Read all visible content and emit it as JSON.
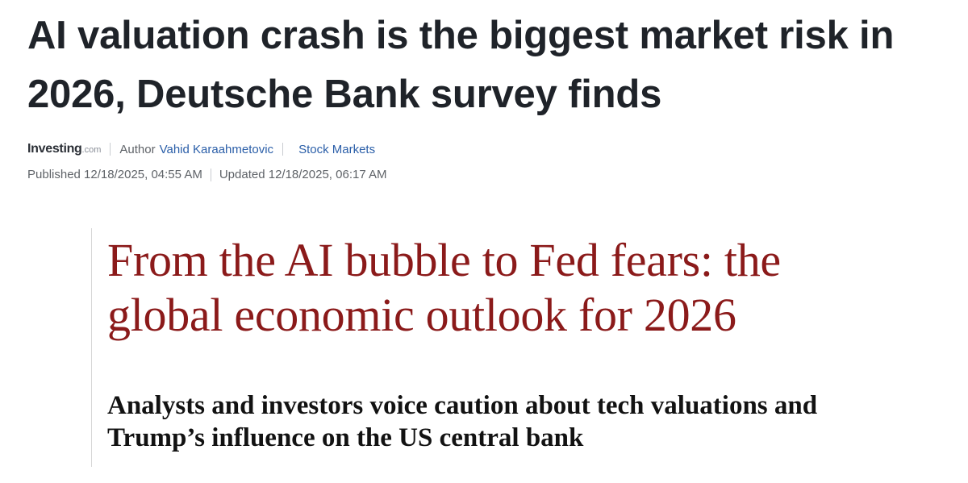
{
  "article": {
    "headline": "AI valuation crash is the biggest market risk in 2026, Deutsche Bank survey finds",
    "source": {
      "logo_text": "Investing",
      "logo_suffix": ".com"
    },
    "author_label": "Author",
    "author_name": "Vahid Karaahmetovic",
    "category": "Stock Markets",
    "published": "Published 12/18/2025, 04:55 AM",
    "updated": "Updated 12/18/2025, 06:17 AM"
  },
  "quote": {
    "headline": "From the AI bubble to Fed fears: the global economic outlook for 2026",
    "standfirst": "Analysts and investors voice caution about tech valuations and Trump’s influence on the US central bank"
  },
  "colors": {
    "headline": "#1f2329",
    "link": "#2a5ea8",
    "muted": "#5f6368",
    "guardian_red": "#8b1a1a",
    "standfirst": "#121212"
  }
}
